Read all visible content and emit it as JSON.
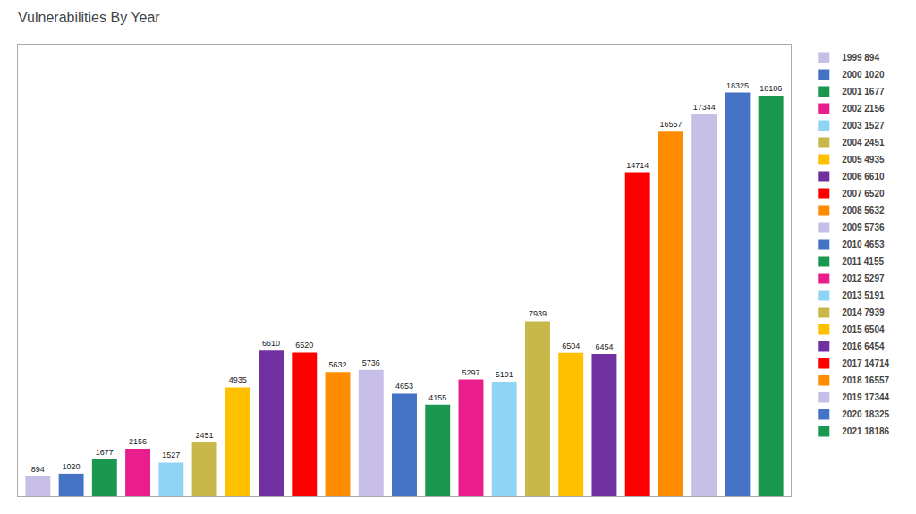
{
  "chart_data": {
    "type": "bar",
    "title": "Vulnerabilities By Year",
    "categories": [
      "1999",
      "2000",
      "2001",
      "2002",
      "2003",
      "2004",
      "2005",
      "2006",
      "2007",
      "2008",
      "2009",
      "2010",
      "2011",
      "2012",
      "2013",
      "2014",
      "2015",
      "2016",
      "2017",
      "2018",
      "2019",
      "2020",
      "2021"
    ],
    "series": [
      {
        "name": "1999 894",
        "color": "#c8bfe8",
        "values": [
          894,
          null,
          null,
          null,
          null,
          null,
          null,
          null,
          null,
          null,
          null,
          null,
          null,
          null,
          null,
          null,
          null,
          null,
          null,
          null,
          null,
          null,
          null
        ]
      },
      {
        "name": "2000 1020",
        "color": "#4472c4",
        "values": [
          null,
          1020,
          null,
          null,
          null,
          null,
          null,
          null,
          null,
          null,
          null,
          null,
          null,
          null,
          null,
          null,
          null,
          null,
          null,
          null,
          null,
          null,
          null
        ]
      },
      {
        "name": "2001 1677",
        "color": "#1a9850",
        "values": [
          null,
          null,
          1677,
          null,
          null,
          null,
          null,
          null,
          null,
          null,
          null,
          null,
          null,
          null,
          null,
          null,
          null,
          null,
          null,
          null,
          null,
          null,
          null
        ]
      },
      {
        "name": "2002 2156",
        "color": "#e91e8c",
        "values": [
          null,
          null,
          null,
          2156,
          null,
          null,
          null,
          null,
          null,
          null,
          null,
          null,
          null,
          null,
          null,
          null,
          null,
          null,
          null,
          null,
          null,
          null,
          null
        ]
      },
      {
        "name": "2003 1527",
        "color": "#90d4f5",
        "values": [
          null,
          null,
          null,
          null,
          1527,
          null,
          null,
          null,
          null,
          null,
          null,
          null,
          null,
          null,
          null,
          null,
          null,
          null,
          null,
          null,
          null,
          null,
          null
        ]
      },
      {
        "name": "2004 2451",
        "color": "#c8b84a",
        "values": [
          null,
          null,
          null,
          null,
          null,
          2451,
          null,
          null,
          null,
          null,
          null,
          null,
          null,
          null,
          null,
          null,
          null,
          null,
          null,
          null,
          null,
          null,
          null
        ]
      },
      {
        "name": "2005 4935",
        "color": "#ffc000",
        "values": [
          null,
          null,
          null,
          null,
          null,
          null,
          4935,
          null,
          null,
          null,
          null,
          null,
          null,
          null,
          null,
          null,
          null,
          null,
          null,
          null,
          null,
          null,
          null
        ]
      },
      {
        "name": "2006 6610",
        "color": "#7030a0",
        "values": [
          null,
          null,
          null,
          null,
          null,
          null,
          null,
          6610,
          null,
          null,
          null,
          null,
          null,
          null,
          null,
          null,
          null,
          null,
          null,
          null,
          null,
          null,
          null
        ]
      },
      {
        "name": "2007 6520",
        "color": "#ff0000",
        "values": [
          null,
          null,
          null,
          null,
          null,
          null,
          null,
          null,
          6520,
          null,
          null,
          null,
          null,
          null,
          null,
          null,
          null,
          null,
          null,
          null,
          null,
          null,
          null
        ]
      },
      {
        "name": "2008 5632",
        "color": "#ff8c00",
        "values": [
          null,
          null,
          null,
          null,
          null,
          null,
          null,
          null,
          null,
          5632,
          null,
          null,
          null,
          null,
          null,
          null,
          null,
          null,
          null,
          null,
          null,
          null,
          null
        ]
      },
      {
        "name": "2009 5736",
        "color": "#c8bfe8",
        "values": [
          null,
          null,
          null,
          null,
          null,
          null,
          null,
          null,
          null,
          null,
          5736,
          null,
          null,
          null,
          null,
          null,
          null,
          null,
          null,
          null,
          null,
          null,
          null
        ]
      },
      {
        "name": "2010 4653",
        "color": "#4472c4",
        "values": [
          null,
          null,
          null,
          null,
          null,
          null,
          null,
          null,
          null,
          null,
          null,
          4653,
          null,
          null,
          null,
          null,
          null,
          null,
          null,
          null,
          null,
          null,
          null
        ]
      },
      {
        "name": "2011 4155",
        "color": "#1a9850",
        "values": [
          null,
          null,
          null,
          null,
          null,
          null,
          null,
          null,
          null,
          null,
          null,
          null,
          4155,
          null,
          null,
          null,
          null,
          null,
          null,
          null,
          null,
          null,
          null
        ]
      },
      {
        "name": "2012 5297",
        "color": "#e91e8c",
        "values": [
          null,
          null,
          null,
          null,
          null,
          null,
          null,
          null,
          null,
          null,
          null,
          null,
          null,
          5297,
          null,
          null,
          null,
          null,
          null,
          null,
          null,
          null,
          null
        ]
      },
      {
        "name": "2013 5191",
        "color": "#90d4f5",
        "values": [
          null,
          null,
          null,
          null,
          null,
          null,
          null,
          null,
          null,
          null,
          null,
          null,
          null,
          null,
          5191,
          null,
          null,
          null,
          null,
          null,
          null,
          null,
          null
        ]
      },
      {
        "name": "2014 7939",
        "color": "#c8b84a",
        "values": [
          null,
          null,
          null,
          null,
          null,
          null,
          null,
          null,
          null,
          null,
          null,
          null,
          null,
          null,
          null,
          7939,
          null,
          null,
          null,
          null,
          null,
          null,
          null
        ]
      },
      {
        "name": "2015 6504",
        "color": "#ffc000",
        "values": [
          null,
          null,
          null,
          null,
          null,
          null,
          null,
          null,
          null,
          null,
          null,
          null,
          null,
          null,
          null,
          null,
          6504,
          null,
          null,
          null,
          null,
          null,
          null
        ]
      },
      {
        "name": "2016 6454",
        "color": "#7030a0",
        "values": [
          null,
          null,
          null,
          null,
          null,
          null,
          null,
          null,
          null,
          null,
          null,
          null,
          null,
          null,
          null,
          null,
          null,
          6454,
          null,
          null,
          null,
          null,
          null
        ]
      },
      {
        "name": "2017 14714",
        "color": "#ff0000",
        "values": [
          null,
          null,
          null,
          null,
          null,
          null,
          null,
          null,
          null,
          null,
          null,
          null,
          null,
          null,
          null,
          null,
          null,
          null,
          14714,
          null,
          null,
          null,
          null
        ]
      },
      {
        "name": "2018 16557",
        "color": "#ff8c00",
        "values": [
          null,
          null,
          null,
          null,
          null,
          null,
          null,
          null,
          null,
          null,
          null,
          null,
          null,
          null,
          null,
          null,
          null,
          null,
          null,
          16557,
          null,
          null,
          null
        ]
      },
      {
        "name": "2019 17344",
        "color": "#c8bfe8",
        "values": [
          null,
          null,
          null,
          null,
          null,
          null,
          null,
          null,
          null,
          null,
          null,
          null,
          null,
          null,
          null,
          null,
          null,
          null,
          null,
          null,
          17344,
          null,
          null
        ]
      },
      {
        "name": "2020 18325",
        "color": "#4472c4",
        "values": [
          null,
          null,
          null,
          null,
          null,
          null,
          null,
          null,
          null,
          null,
          null,
          null,
          null,
          null,
          null,
          null,
          null,
          null,
          null,
          null,
          null,
          18325,
          null
        ]
      },
      {
        "name": "2021 18186",
        "color": "#1a9850",
        "values": [
          null,
          null,
          null,
          null,
          null,
          null,
          null,
          null,
          null,
          null,
          null,
          null,
          null,
          null,
          null,
          null,
          null,
          null,
          null,
          null,
          null,
          null,
          18186
        ]
      }
    ],
    "ylim": [
      0,
      20500
    ],
    "grid": false,
    "legend": "upper right",
    "data_labels": true,
    "tick_labels": false
  }
}
